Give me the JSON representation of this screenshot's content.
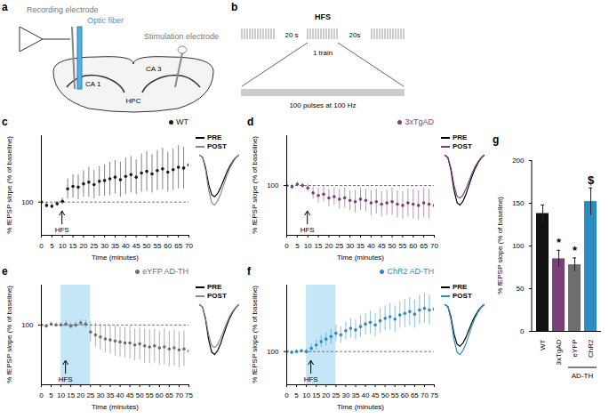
{
  "schematics": [
    {
      "panel": "a",
      "labels": {
        "recording": "Recording electrode",
        "fiber": "Optic fiber",
        "stimulation": "Stimulation electrode",
        "ca1": "CA 1",
        "ca3": "CA 3",
        "hpc": "HPC"
      }
    },
    {
      "panel": "b",
      "labels": {
        "title": "HFS",
        "interval_left": "20 s",
        "interval_right": "20s",
        "train": "1 train",
        "train_detail": "100 pulses at 100 Hz"
      }
    }
  ],
  "chart_data": [
    {
      "panel": "c",
      "type": "scatter",
      "x_label": "Time (minutes)",
      "y_label": "% fEPSP slope (% of baseline)",
      "xlim": [
        0,
        70
      ],
      "xticks": [
        0,
        5,
        10,
        15,
        20,
        25,
        30,
        35,
        40,
        45,
        50,
        55,
        60,
        65,
        70
      ],
      "ylim": [
        60,
        180
      ],
      "yticks": [
        100
      ],
      "baseline": 100,
      "annotations": [
        {
          "text": "HFS",
          "x": 10
        }
      ],
      "x": [
        0,
        2.5,
        5,
        7.5,
        10,
        12.5,
        15,
        17.5,
        20,
        22.5,
        25,
        27.5,
        30,
        32.5,
        35,
        37.5,
        40,
        42.5,
        45,
        47.5,
        50,
        52.5,
        55,
        57.5,
        60,
        62.5,
        65,
        67.5,
        70
      ],
      "series": [
        {
          "name": "WT",
          "color": "#1a1a1a",
          "marker": "circle",
          "values": [
            100,
            96,
            95,
            98,
            101,
            116,
            119,
            118,
            122,
            124,
            121,
            125,
            126,
            128,
            130,
            127,
            131,
            133,
            130,
            135,
            137,
            134,
            138,
            140,
            136,
            139,
            142,
            141,
            145
          ],
          "errors": [
            3,
            3,
            3,
            3,
            4,
            12,
            14,
            15,
            16,
            18,
            17,
            18,
            19,
            20,
            20,
            21,
            22,
            22,
            21,
            23,
            24,
            23,
            24,
            25,
            24,
            25,
            26,
            25,
            27
          ]
        }
      ],
      "inset": {
        "tick_labels": false,
        "x": [
          0,
          1,
          2,
          3,
          4,
          5,
          6,
          7,
          8,
          9,
          10,
          11,
          12,
          13
        ],
        "series": [
          {
            "name": "PRE",
            "color": "#000000",
            "values": [
              0,
              -0.05,
              -0.3,
              -0.7,
              -0.95,
              -1.0,
              -0.92,
              -0.78,
              -0.6,
              -0.42,
              -0.27,
              -0.15,
              -0.06,
              0
            ]
          },
          {
            "name": "POST",
            "color": "#8a8a8a",
            "values": [
              0,
              -0.05,
              -0.36,
              -0.84,
              -1.14,
              -1.2,
              -1.1,
              -0.93,
              -0.72,
              -0.5,
              -0.32,
              -0.18,
              -0.07,
              0
            ]
          }
        ]
      }
    },
    {
      "panel": "d",
      "type": "scatter",
      "x_label": "Time (minutes)",
      "y_label": "% fEPSP slope (% of baseline)",
      "xlim": [
        0,
        70
      ],
      "xticks": [
        0,
        5,
        10,
        15,
        20,
        25,
        30,
        35,
        40,
        45,
        50,
        55,
        60,
        65,
        70
      ],
      "ylim": [
        60,
        140
      ],
      "yticks": [
        100
      ],
      "baseline": 100,
      "annotations": [
        {
          "text": "HFS",
          "x": 10
        }
      ],
      "x": [
        0,
        2.5,
        5,
        7.5,
        10,
        12.5,
        15,
        17.5,
        20,
        22.5,
        25,
        27.5,
        30,
        32.5,
        35,
        37.5,
        40,
        42.5,
        45,
        47.5,
        50,
        52.5,
        55,
        57.5,
        60,
        62.5,
        65,
        67.5,
        70
      ],
      "series": [
        {
          "name": "3xTgAD",
          "color": "#7b3f7a",
          "marker": "circle",
          "values": [
            100,
            99,
            101,
            100,
            98,
            94,
            92,
            93,
            90,
            91,
            89,
            90,
            88,
            87,
            89,
            88,
            86,
            87,
            85,
            86,
            87,
            85,
            84,
            86,
            85,
            84,
            86,
            85,
            84
          ],
          "errors": [
            2,
            2,
            2,
            2,
            3,
            5,
            6,
            6,
            7,
            7,
            8,
            8,
            8,
            9,
            9,
            9,
            10,
            10,
            10,
            10,
            11,
            11,
            11,
            11,
            12,
            12,
            12,
            12,
            12
          ]
        }
      ],
      "inset": {
        "tick_labels": false,
        "x": [
          0,
          1,
          2,
          3,
          4,
          5,
          6,
          7,
          8,
          9,
          10,
          11,
          12,
          13
        ],
        "series": [
          {
            "name": "PRE",
            "color": "#000000",
            "values": [
              0,
              -0.05,
              -0.3,
              -0.7,
              -0.95,
              -1.0,
              -0.92,
              -0.78,
              -0.6,
              -0.42,
              -0.27,
              -0.15,
              -0.06,
              0
            ]
          },
          {
            "name": "POST",
            "color": "#7b3f7a",
            "values": [
              0,
              -0.05,
              -0.26,
              -0.6,
              -0.82,
              -0.86,
              -0.8,
              -0.67,
              -0.52,
              -0.36,
              -0.23,
              -0.13,
              -0.05,
              0
            ]
          }
        ]
      }
    },
    {
      "panel": "e",
      "type": "scatter",
      "x_label": "Time (minutes)",
      "y_label": "% fEPSP slope (% of baseline)",
      "xlim": [
        0,
        75
      ],
      "xticks": [
        0,
        5,
        10,
        15,
        20,
        25,
        30,
        35,
        40,
        45,
        50,
        55,
        60,
        65,
        70,
        75
      ],
      "ylim": [
        40,
        140
      ],
      "yticks": [
        100
      ],
      "baseline": 100,
      "shaded": [
        10,
        25
      ],
      "annotations": [
        {
          "text": "HFS",
          "x": 12.5
        }
      ],
      "x": [
        0,
        2.5,
        5,
        7.5,
        10,
        12.5,
        15,
        17.5,
        20,
        22.5,
        25,
        27.5,
        30,
        32.5,
        35,
        37.5,
        40,
        42.5,
        45,
        47.5,
        50,
        52.5,
        55,
        57.5,
        60,
        62.5,
        65,
        67.5,
        70,
        72.5,
        75
      ],
      "series": [
        {
          "name": "eYFP AD-TH",
          "color": "#6e6e6e",
          "marker": "circle",
          "values": [
            100,
            99,
            101,
            100,
            100,
            101,
            99,
            100,
            102,
            101,
            93,
            90,
            88,
            86,
            85,
            84,
            83,
            82,
            82,
            80,
            81,
            79,
            78,
            79,
            77,
            78,
            76,
            77,
            75,
            76,
            74
          ],
          "errors": [
            2,
            2,
            2,
            2,
            2,
            3,
            3,
            3,
            3,
            4,
            10,
            12,
            13,
            14,
            14,
            15,
            15,
            15,
            16,
            16,
            16,
            17,
            17,
            17,
            17,
            18,
            18,
            18,
            18,
            18,
            18
          ]
        }
      ],
      "inset": {
        "tick_labels": false,
        "x": [
          0,
          1,
          2,
          3,
          4,
          5,
          6,
          7,
          8,
          9,
          10,
          11,
          12,
          13
        ],
        "series": [
          {
            "name": "PRE",
            "color": "#000000",
            "values": [
              0,
              -0.05,
              -0.3,
              -0.7,
              -0.95,
              -1.0,
              -0.92,
              -0.78,
              -0.6,
              -0.42,
              -0.27,
              -0.15,
              -0.06,
              0
            ]
          },
          {
            "name": "POST",
            "color": "#8a8a8a",
            "values": [
              0,
              -0.05,
              -0.26,
              -0.6,
              -0.82,
              -0.86,
              -0.8,
              -0.67,
              -0.52,
              -0.36,
              -0.23,
              -0.13,
              -0.05,
              0
            ]
          }
        ]
      }
    },
    {
      "panel": "f",
      "type": "scatter",
      "x_label": "Time (minutes)",
      "y_label": "% fEPSP slope (% of baseline)",
      "xlim": [
        0,
        75
      ],
      "xticks": [
        0,
        5,
        10,
        15,
        20,
        25,
        30,
        35,
        40,
        45,
        50,
        55,
        60,
        65,
        70,
        75
      ],
      "ylim": [
        60,
        180
      ],
      "yticks": [
        100
      ],
      "baseline": 100,
      "shaded": [
        10,
        25
      ],
      "annotations": [
        {
          "text": "HFS",
          "x": 12.5
        }
      ],
      "x": [
        0,
        2.5,
        5,
        7.5,
        10,
        12.5,
        15,
        17.5,
        20,
        22.5,
        25,
        27.5,
        30,
        32.5,
        35,
        37.5,
        40,
        42.5,
        45,
        47.5,
        50,
        52.5,
        55,
        57.5,
        60,
        62.5,
        65,
        67.5,
        70,
        72.5,
        75
      ],
      "series": [
        {
          "name": "ChR2 AD-TH",
          "color": "#2b8cc4",
          "marker": "circle",
          "values": [
            100,
            99,
            100,
            101,
            100,
            104,
            108,
            112,
            115,
            118,
            122,
            120,
            125,
            128,
            126,
            130,
            133,
            135,
            132,
            137,
            140,
            142,
            139,
            144,
            146,
            148,
            145,
            150,
            152,
            150,
            151
          ],
          "errors": [
            2,
            2,
            2,
            2,
            3,
            5,
            6,
            7,
            8,
            9,
            10,
            10,
            11,
            12,
            12,
            13,
            13,
            14,
            14,
            15,
            15,
            16,
            16,
            16,
            17,
            17,
            17,
            18,
            18,
            18,
            18
          ]
        }
      ],
      "inset": {
        "tick_labels": false,
        "x": [
          0,
          1,
          2,
          3,
          4,
          5,
          6,
          7,
          8,
          9,
          10,
          11,
          12,
          13
        ],
        "series": [
          {
            "name": "PRE",
            "color": "#000000",
            "values": [
              0,
              -0.05,
              -0.3,
              -0.7,
              -0.95,
              -1.0,
              -0.92,
              -0.78,
              -0.6,
              -0.42,
              -0.27,
              -0.15,
              -0.06,
              0
            ]
          },
          {
            "name": "POST",
            "color": "#2b8cc4",
            "values": [
              0,
              -0.05,
              -0.36,
              -0.84,
              -1.14,
              -1.2,
              -1.1,
              -0.93,
              -0.72,
              -0.5,
              -0.32,
              -0.18,
              -0.07,
              0
            ]
          }
        ]
      }
    },
    {
      "panel": "g",
      "type": "bar",
      "y_label": "% fEPSP slope (% of baseline)",
      "categories": [
        "WT",
        "3xTgAD",
        "eYFP",
        "ChR2"
      ],
      "values": [
        138,
        85,
        78,
        152
      ],
      "errors": [
        10,
        10,
        8,
        16
      ],
      "colors": [
        "#111111",
        "#7b3f7a",
        "#6e6e6e",
        "#2b8cc4"
      ],
      "significance": [
        null,
        "*",
        "*",
        "$"
      ],
      "groups": [
        {
          "label": "AD-TH",
          "categories": [
            "eYFP",
            "ChR2"
          ]
        }
      ],
      "ylim": [
        0,
        200
      ],
      "yticks": [
        0,
        50,
        100,
        150,
        200
      ]
    }
  ]
}
